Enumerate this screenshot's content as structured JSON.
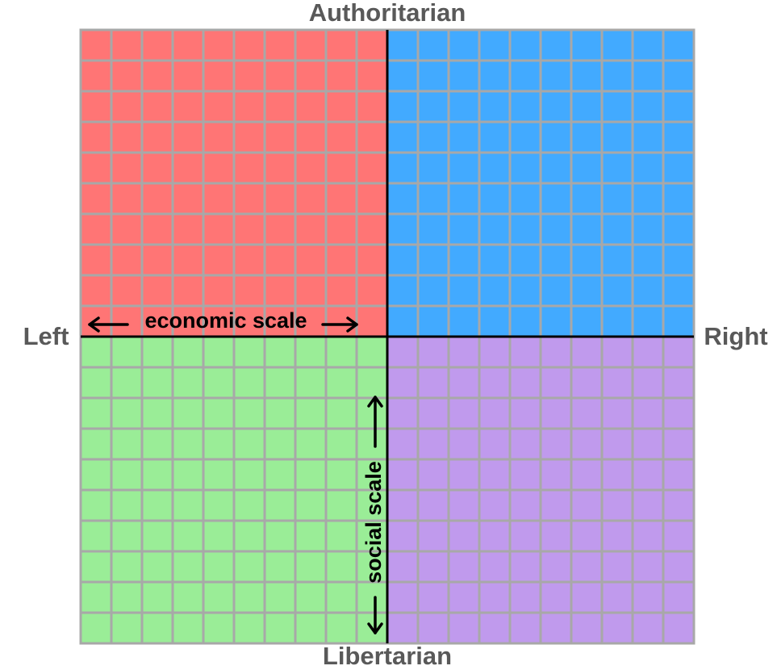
{
  "labels": {
    "top": "Authoritarian",
    "bottom": "Libertarian",
    "left": "Left",
    "right": "Right"
  },
  "axes": {
    "economic": "economic scale",
    "social": "social scale"
  }
}
